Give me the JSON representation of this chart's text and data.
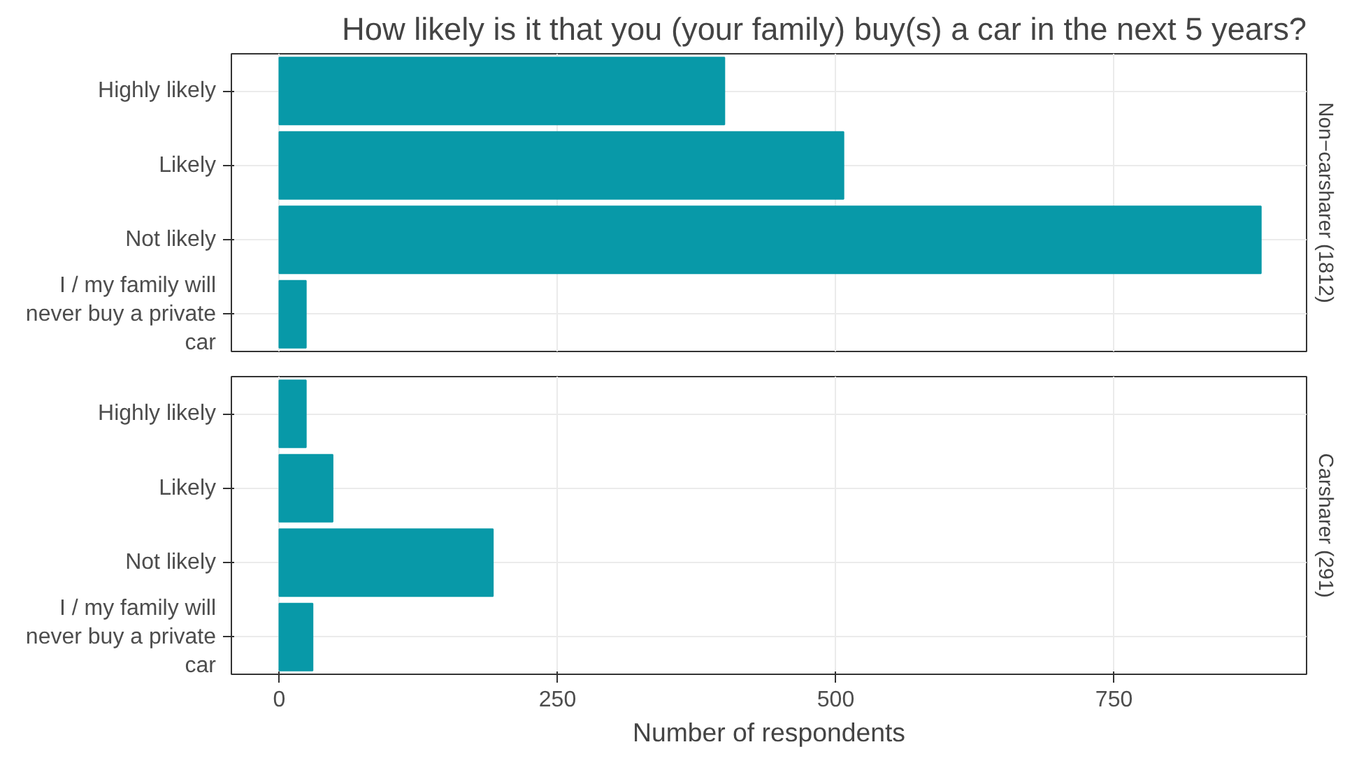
{
  "chart_data": [
    {
      "type": "bar",
      "orientation": "horizontal",
      "title": "How likely is it that you (your family) buy(s) a car in the next 5 years?",
      "subtitle": "Non−carsharer (1812)",
      "categories": [
        "Highly likely",
        "Likely",
        "Not likely",
        "I / my family will never buy a private car"
      ],
      "values": [
        400,
        507,
        882,
        24
      ],
      "color": "#0899a8",
      "xlim": [
        -43,
        923
      ],
      "xticks": [
        0,
        250,
        500,
        750
      ],
      "grid": true,
      "tick_labels": "y"
    },
    {
      "type": "bar",
      "orientation": "horizontal",
      "subtitle": "Carsharer (291)",
      "xlabel": "Number of respondents",
      "categories": [
        "Highly likely",
        "Likely",
        "Not likely",
        "I / my family will never buy a private car"
      ],
      "values": [
        24,
        48,
        192,
        30
      ],
      "color": "#0899a8",
      "xlim": [
        -43,
        923
      ],
      "xticks": [
        0,
        250,
        500,
        750
      ],
      "grid": true
    }
  ]
}
